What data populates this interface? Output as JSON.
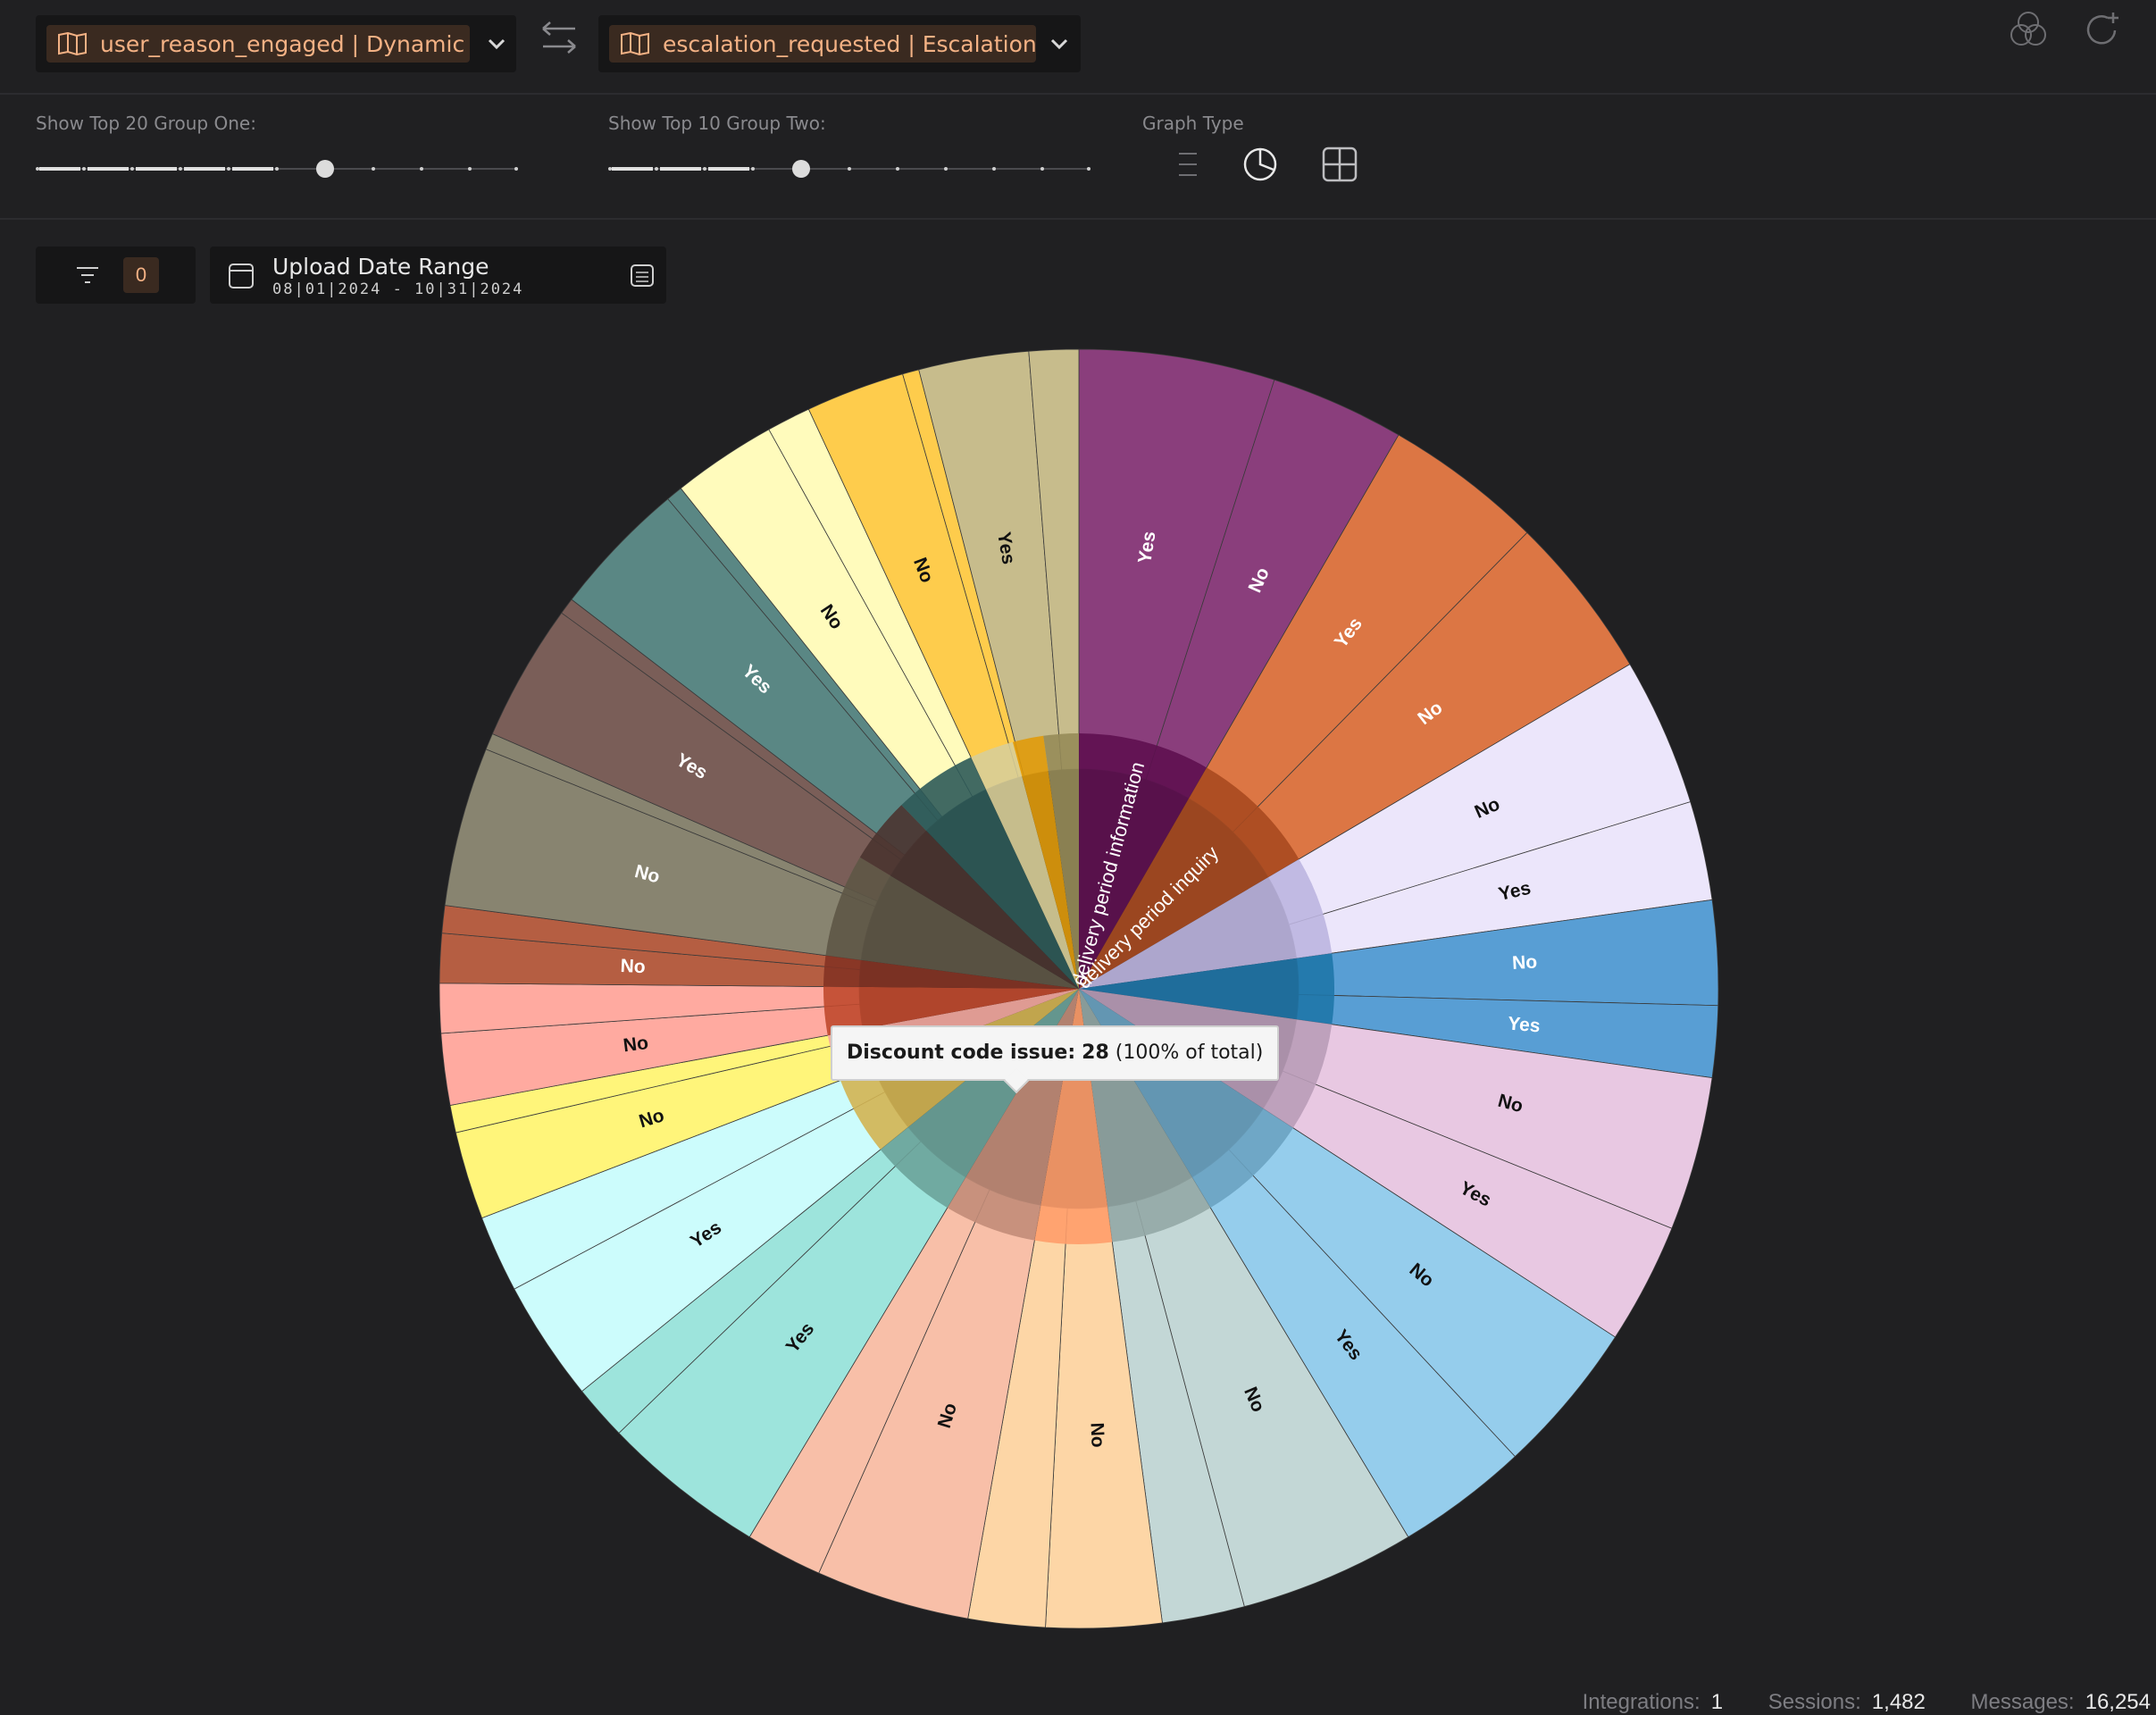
{
  "header": {
    "group_one_selector": "user_reason_engaged | Dynamic La",
    "group_two_selector": "escalation_requested | Escalation"
  },
  "controls": {
    "group_one_label": "Show Top 20 Group One:",
    "group_one_value": 7,
    "group_one_max": 11,
    "group_two_label": "Show Top 10 Group Two:",
    "group_two_value": 5,
    "group_two_max": 11,
    "graph_type_label": "Graph Type",
    "graph_type_selected": "pie"
  },
  "filters": {
    "count": "0",
    "date_title": "Upload Date Range",
    "date_range": "08|01|2024 - 10|31|2024"
  },
  "tooltip": {
    "label": "Discount code issue:",
    "value": "28",
    "note": "(100% of total)"
  },
  "footer": {
    "integrations_label": "Integrations:",
    "integrations_value": "1",
    "sessions_label": "Sessions:",
    "sessions_value": "1,482",
    "messages_label": "Messages:",
    "messages_value": "16,254"
  },
  "colors": {
    "accent": "#f3b184",
    "chip_bg": "#3a2a20",
    "background": "#202022"
  },
  "chart_data": {
    "type": "pie",
    "subtype": "sunburst",
    "inner_ring": [
      {
        "label": "delivery period information",
        "start": 0,
        "end": 30,
        "color": "#5e1050"
      },
      {
        "label": "delivery period inquiry",
        "start": 30,
        "end": 59.5,
        "color": "#a84a20"
      },
      {
        "label": "",
        "start": 59.5,
        "end": 82,
        "color": "#bcb5e0"
      },
      {
        "label": "",
        "start": 82,
        "end": 98,
        "color": "#1f76a8"
      },
      {
        "label": "",
        "start": 98,
        "end": 123,
        "color": "#b99cb8"
      },
      {
        "label": "",
        "start": 123,
        "end": 149,
        "color": "#6aa3c2"
      },
      {
        "label": "",
        "start": 149,
        "end": 172.5,
        "color": "#93a8a6"
      },
      {
        "label": "",
        "start": 172.5,
        "end": 190,
        "color": "#ff9d6a"
      },
      {
        "label": "",
        "start": 190,
        "end": 211,
        "color": "#c28c78"
      },
      {
        "label": "",
        "start": 211,
        "end": 231,
        "color": "#6ca39a"
      },
      {
        "label": "",
        "start": 231,
        "end": 249,
        "color": "#d3b452"
      },
      {
        "label": "",
        "start": 249,
        "end": 259.5,
        "color": "#f4a8a0"
      },
      {
        "label": "",
        "start": 259.5,
        "end": 270.5,
        "color": "#c0492d"
      },
      {
        "label": "",
        "start": 270.5,
        "end": 277.5,
        "color": "#843324"
      },
      {
        "label": "",
        "start": 277.5,
        "end": 301,
        "color": "#5e5646"
      },
      {
        "label": "",
        "start": 301,
        "end": 316,
        "color": "#4a3430"
      },
      {
        "label": "",
        "start": 316,
        "end": 335,
        "color": "#2e5a58"
      },
      {
        "label": "",
        "start": 335,
        "end": 345,
        "color": "#d8ce98"
      },
      {
        "label": "",
        "start": 345,
        "end": 352,
        "color": "#e09a0a"
      },
      {
        "label": "",
        "start": 352,
        "end": 360,
        "color": "#968b58"
      }
    ],
    "outer_ring": [
      {
        "label": "Yes",
        "start": 0,
        "end": 17.8,
        "color": "#8a3e7c",
        "text": "#ffffff"
      },
      {
        "label": "No",
        "start": 17.8,
        "end": 30,
        "color": "#8a3e7c",
        "text": "#ffffff"
      },
      {
        "label": "Yes",
        "start": 30,
        "end": 44.5,
        "color": "#dc7644",
        "text": "#ffffff"
      },
      {
        "label": "No",
        "start": 44.5,
        "end": 59.5,
        "color": "#dc7644",
        "text": "#ffffff"
      },
      {
        "label": "No",
        "start": 59.5,
        "end": 73,
        "color": "#ece6fb",
        "text": "#111111"
      },
      {
        "label": "Yes",
        "start": 73,
        "end": 82,
        "color": "#ece6fb",
        "text": "#111111"
      },
      {
        "label": "No",
        "start": 82,
        "end": 91.5,
        "color": "#589ed4",
        "text": "#ffffff"
      },
      {
        "label": "Yes",
        "start": 91.5,
        "end": 98,
        "color": "#589ed4",
        "text": "#ffffff"
      },
      {
        "label": "No",
        "start": 98,
        "end": 112,
        "color": "#e8c8e2",
        "text": "#111111"
      },
      {
        "label": "Yes",
        "start": 112,
        "end": 123,
        "color": "#e8c8e2",
        "text": "#111111"
      },
      {
        "label": "No",
        "start": 123,
        "end": 137,
        "color": "#95cdec",
        "text": "#111111"
      },
      {
        "label": "Yes",
        "start": 137,
        "end": 149,
        "color": "#95cdec",
        "text": "#111111"
      },
      {
        "label": "No",
        "start": 149,
        "end": 165,
        "color": "#c3d7d6",
        "text": "#111111"
      },
      {
        "label": "",
        "start": 165,
        "end": 172.5,
        "color": "#c3d7d6",
        "text": "#111111"
      },
      {
        "label": "No",
        "start": 172.5,
        "end": 183,
        "color": "#fdd6a6",
        "text": "#111111"
      },
      {
        "label": "",
        "start": 183,
        "end": 190,
        "color": "#fdd6a6",
        "text": "#111111"
      },
      {
        "label": "No",
        "start": 190,
        "end": 204,
        "color": "#f8bfa8",
        "text": "#111111"
      },
      {
        "label": "",
        "start": 204,
        "end": 211,
        "color": "#f8bfa8",
        "text": "#111111"
      },
      {
        "label": "Yes",
        "start": 211,
        "end": 226,
        "color": "#9de4dc",
        "text": "#111111"
      },
      {
        "label": "",
        "start": 226,
        "end": 231,
        "color": "#9de4dc",
        "text": "#111111"
      },
      {
        "label": "Yes",
        "start": 231,
        "end": 242,
        "color": "#ccfcfc",
        "text": "#111111"
      },
      {
        "label": "",
        "start": 242,
        "end": 249,
        "color": "#ccfcfc",
        "text": "#111111"
      },
      {
        "label": "No",
        "start": 249,
        "end": 257,
        "color": "#fff57a",
        "text": "#111111"
      },
      {
        "label": "",
        "start": 257,
        "end": 259.5,
        "color": "#fff57a",
        "text": "#111111"
      },
      {
        "label": "No",
        "start": 259.5,
        "end": 266,
        "color": "#ffaaa0",
        "text": "#111111"
      },
      {
        "label": "",
        "start": 266,
        "end": 270.5,
        "color": "#ffaaa0",
        "text": "#111111"
      },
      {
        "label": "No",
        "start": 270.5,
        "end": 275,
        "color": "#b55e42",
        "text": "#ffffff"
      },
      {
        "label": "",
        "start": 275,
        "end": 277.5,
        "color": "#b55e42",
        "text": "#ffffff"
      },
      {
        "label": "No",
        "start": 277.5,
        "end": 292,
        "color": "#888470",
        "text": "#ffffff"
      },
      {
        "label": "",
        "start": 292,
        "end": 293.5,
        "color": "#888470",
        "text": "#ffffff"
      },
      {
        "label": "Yes",
        "start": 293.5,
        "end": 306,
        "color": "#7a5e58",
        "text": "#ffffff"
      },
      {
        "label": "",
        "start": 306,
        "end": 307.5,
        "color": "#7a5e58",
        "text": "#ffffff"
      },
      {
        "label": "Yes",
        "start": 307.5,
        "end": 320,
        "color": "#5a8784",
        "text": "#ffffff"
      },
      {
        "label": "",
        "start": 320,
        "end": 321.5,
        "color": "#5a8784",
        "text": "#ffffff"
      },
      {
        "label": "No",
        "start": 321.5,
        "end": 331,
        "color": "#fffbbc",
        "text": "#111111"
      },
      {
        "label": "",
        "start": 331,
        "end": 335,
        "color": "#fffbbc",
        "text": "#111111"
      },
      {
        "label": "No",
        "start": 335,
        "end": 344,
        "color": "#fecc4c",
        "text": "#111111"
      },
      {
        "label": "",
        "start": 344,
        "end": 345.5,
        "color": "#fecc4c",
        "text": "#111111"
      },
      {
        "label": "Yes",
        "start": 345.5,
        "end": 355.5,
        "color": "#c7bc8c",
        "text": "#111111"
      },
      {
        "label": "",
        "start": 355.5,
        "end": 360,
        "color": "#c7bc8c",
        "text": "#111111"
      }
    ]
  }
}
